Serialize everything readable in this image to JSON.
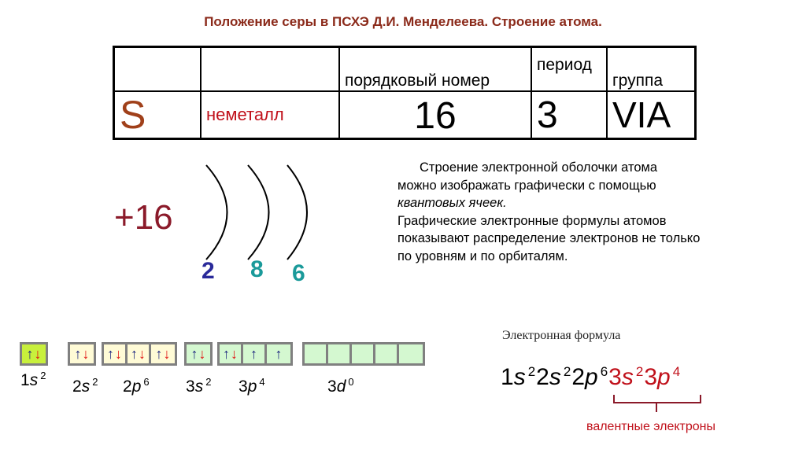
{
  "title": "Положение серы в ПСХЭ Д.И. Менделеева. Строение атома.",
  "table": {
    "headers": [
      "",
      "",
      "порядковый номер",
      "период",
      "группа"
    ],
    "symbol": "S",
    "type": "неметалл",
    "number": "16",
    "period": "3",
    "group": "VIA"
  },
  "atom": {
    "charge": "+16",
    "shells": [
      "2",
      "8",
      "6"
    ],
    "shell_colors": [
      "#2a2a9a",
      "#1a9a9a",
      "#1a9a9a"
    ]
  },
  "description": {
    "part1": "Строение электронной оболочки атома можно изображать графически с помощью ",
    "italic": "квантовых ячеек.",
    "part2": " Графические электронные формулы атомов показывают распределение электронов не только по уровням и по орбиталям."
  },
  "orbitals": [
    {
      "level": "1",
      "sub": "s",
      "count": "2",
      "cells": [
        "pair"
      ],
      "color": "#c8f03c"
    },
    {
      "level": "2",
      "sub": "s",
      "count": "2",
      "cells": [
        "pair"
      ],
      "color": "#fffbd6"
    },
    {
      "level": "2",
      "sub": "p",
      "count": "6",
      "cells": [
        "pair",
        "pair",
        "pair"
      ],
      "color": "#fffbd6"
    },
    {
      "level": "3",
      "sub": "s",
      "count": "2",
      "cells": [
        "pair"
      ],
      "color": "#d4f8d0"
    },
    {
      "level": "3",
      "sub": "p",
      "count": "4",
      "cells": [
        "pair",
        "up",
        "up"
      ],
      "color": "#d4f8d0"
    },
    {
      "level": "3",
      "sub": "d",
      "count": "0",
      "cells": [
        "",
        "",
        "",
        "",
        ""
      ],
      "color": "#d4f8d0"
    }
  ],
  "formula": {
    "label": "Электронная формула",
    "core": [
      [
        "1",
        "s",
        "2"
      ],
      [
        "2",
        "s",
        "2"
      ],
      [
        "2",
        "p",
        "6"
      ]
    ],
    "valence": [
      [
        "3",
        "s",
        "2"
      ],
      [
        "3",
        "p",
        "4"
      ]
    ],
    "valence_label": "валентные электроны"
  }
}
